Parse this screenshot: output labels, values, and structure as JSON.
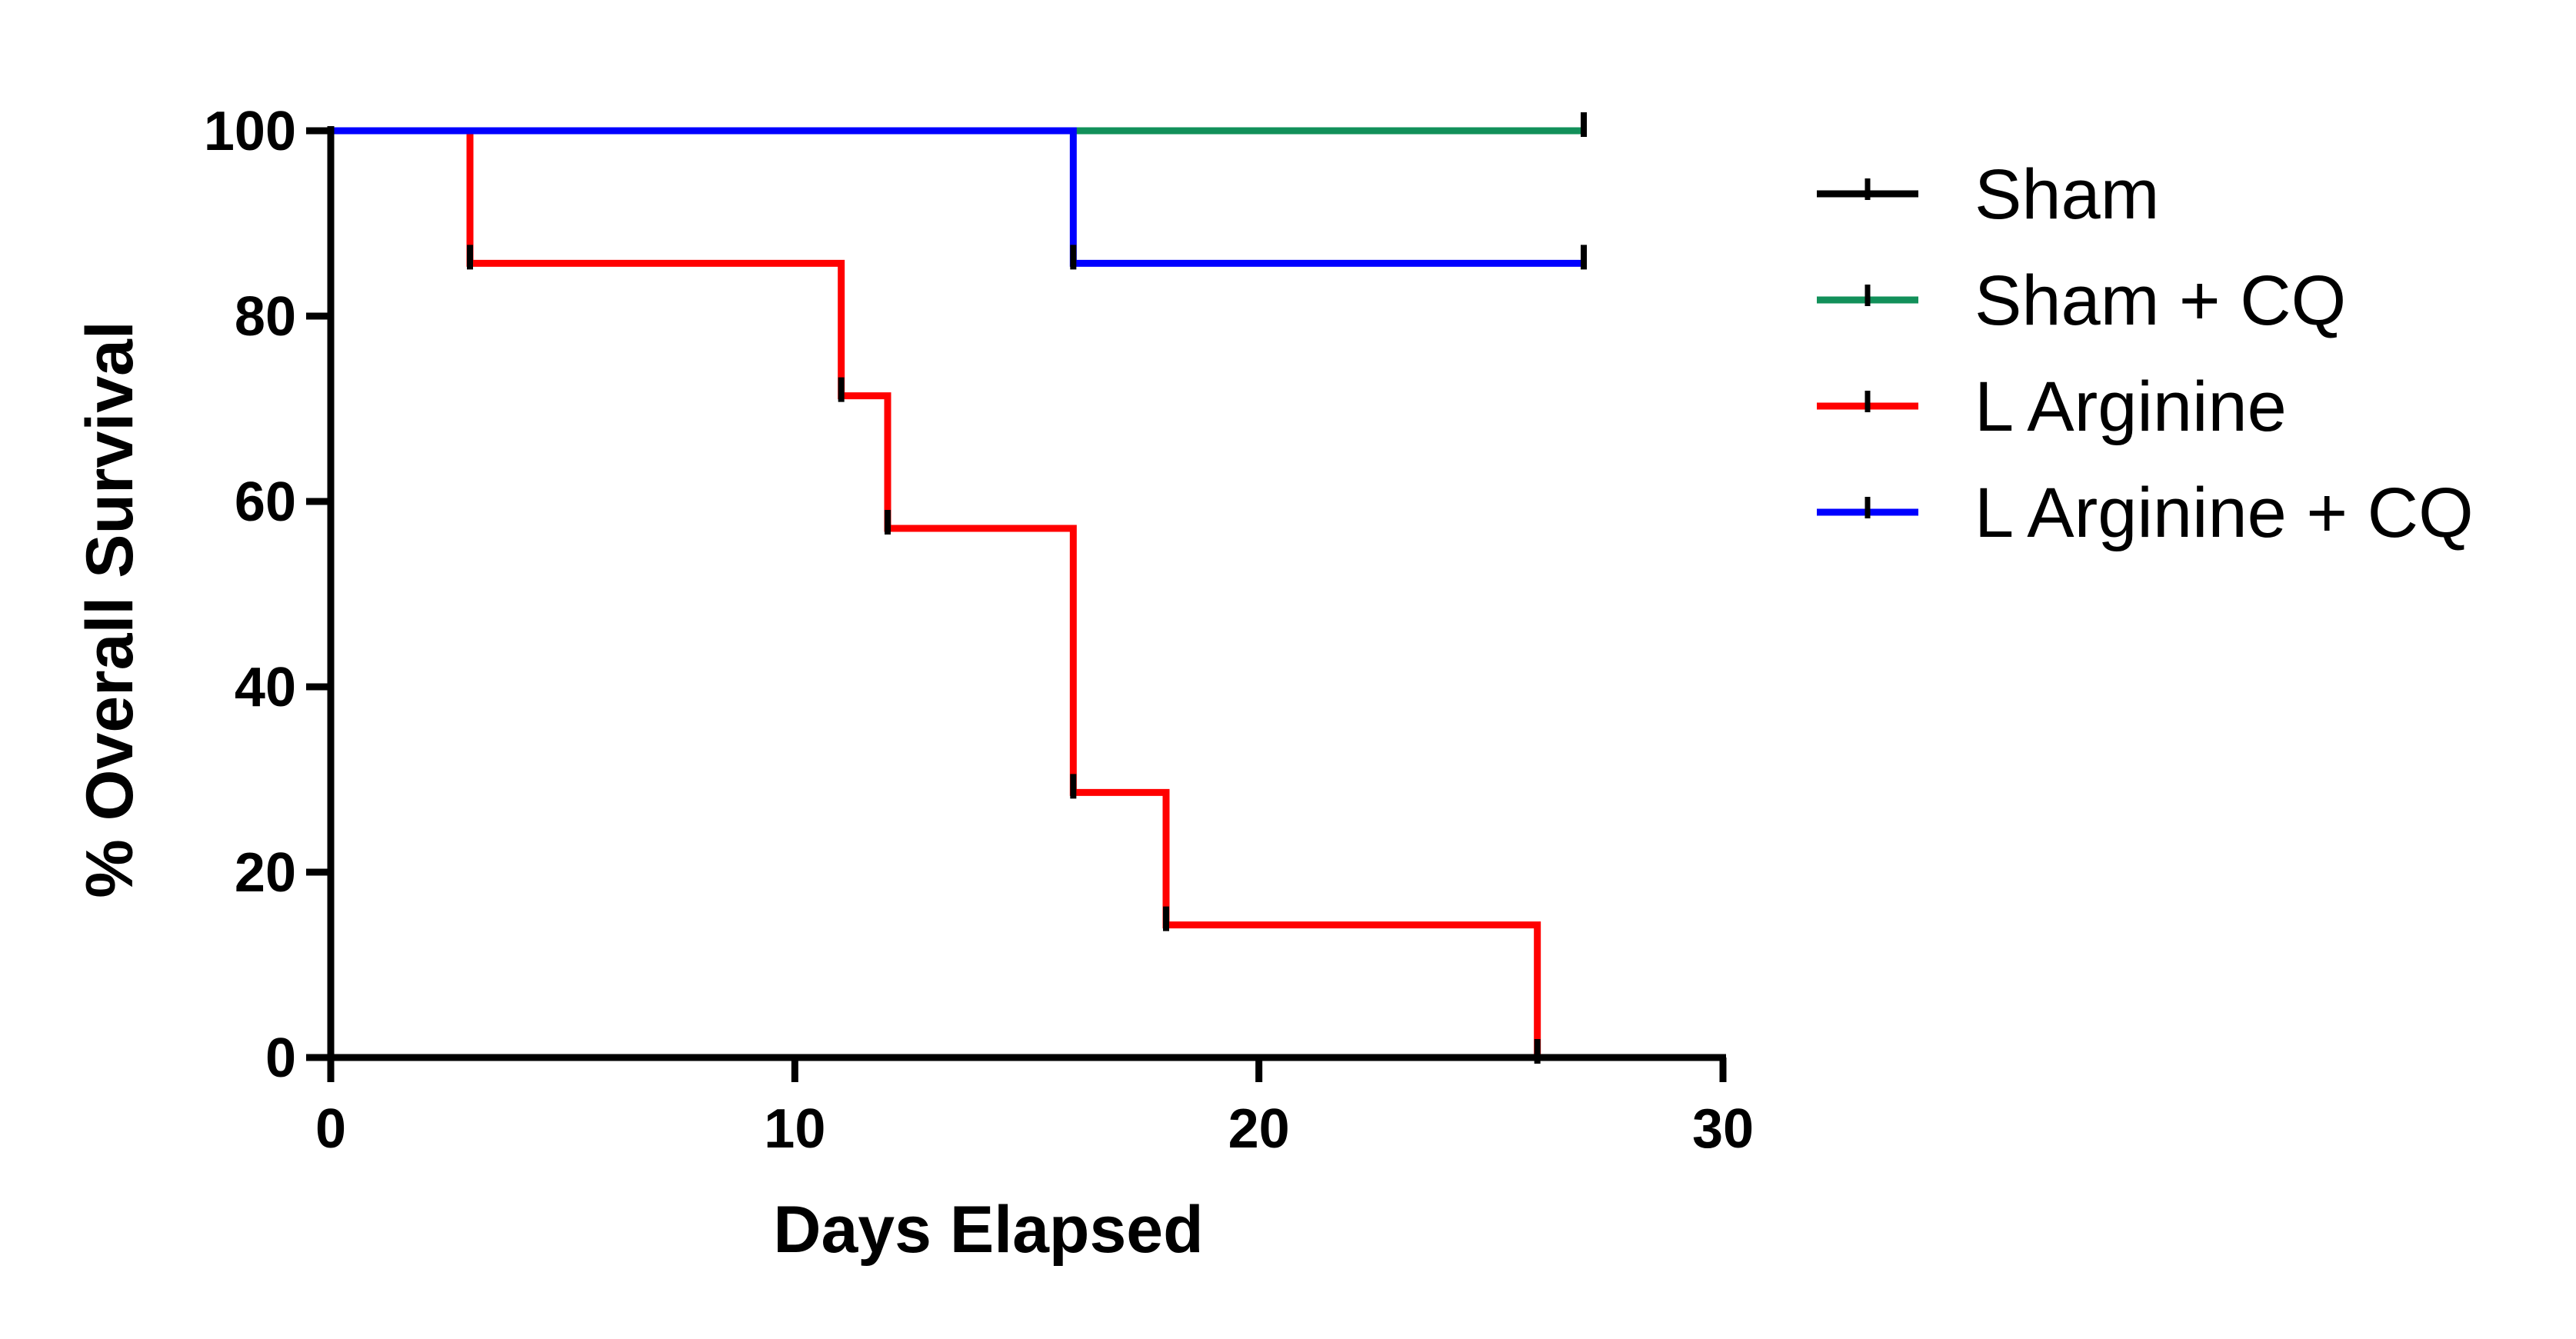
{
  "chart_data": {
    "type": "line",
    "subtype": "kaplan-meier-survival",
    "title": "",
    "xlabel": "Days Elapsed",
    "ylabel": "% Overall Survival",
    "xlim": [
      0,
      30
    ],
    "ylim": [
      0,
      100
    ],
    "xticks": [
      0,
      10,
      20,
      30
    ],
    "yticks": [
      0,
      20,
      40,
      60,
      80,
      100
    ],
    "grid": false,
    "legend_position": "right",
    "series": [
      {
        "name": "Sham",
        "color": "#000000",
        "steps": [
          [
            0,
            100
          ],
          [
            27,
            100
          ]
        ],
        "censored": [
          [
            27,
            100
          ]
        ]
      },
      {
        "name": "Sham + CQ",
        "color": "#12905a",
        "steps": [
          [
            0,
            100
          ],
          [
            27,
            100
          ]
        ],
        "censored": [
          [
            27,
            100
          ]
        ]
      },
      {
        "name": "L Arginine",
        "color": "#ff0000",
        "steps": [
          [
            0,
            100
          ],
          [
            3,
            85.7
          ],
          [
            11,
            71.4
          ],
          [
            12,
            57.1
          ],
          [
            16,
            28.6
          ],
          [
            18,
            14.3
          ],
          [
            26,
            0
          ]
        ],
        "censored": [
          [
            3,
            85.7
          ],
          [
            11,
            71.4
          ],
          [
            12,
            57.1
          ],
          [
            16,
            28.6
          ],
          [
            18,
            14.3
          ],
          [
            26,
            0
          ]
        ]
      },
      {
        "name": "L Arginine + CQ",
        "color": "#0000ff",
        "steps": [
          [
            0,
            100
          ],
          [
            16,
            85.7
          ],
          [
            27,
            85.7
          ]
        ],
        "censored": [
          [
            16,
            85.7
          ],
          [
            27,
            85.7
          ]
        ]
      }
    ]
  }
}
